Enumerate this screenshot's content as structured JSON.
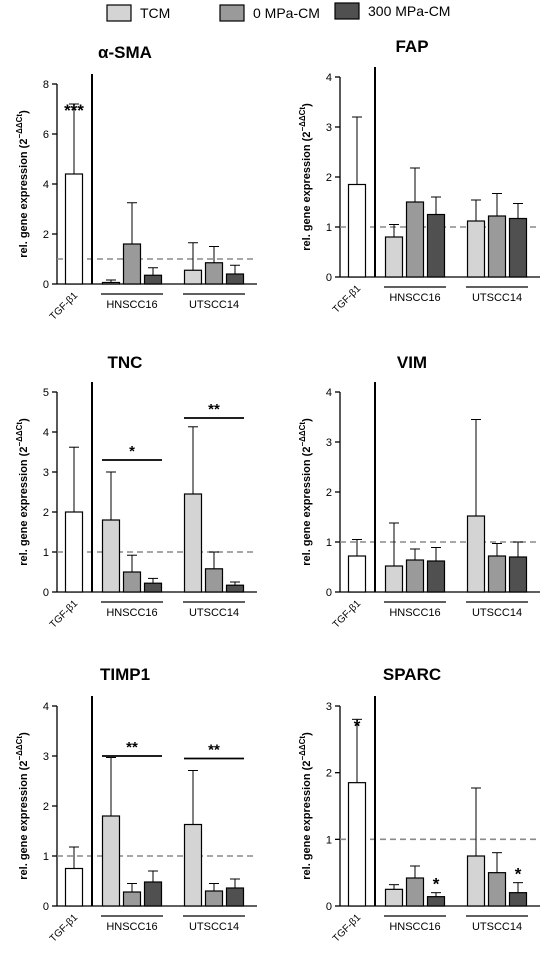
{
  "legend": {
    "items": [
      {
        "label": "TCM",
        "color": "#d4d4d4"
      },
      {
        "label": "0 MPa-CM",
        "color": "#9a9a9a"
      },
      {
        "label": "300 MPa-CM",
        "color": "#505050"
      }
    ]
  },
  "colors": {
    "tgf": "#ffffff",
    "tcm": "#d4d4d4",
    "mpa0": "#9a9a9a",
    "mpa300": "#505050",
    "baseline": "#8a8a8a"
  },
  "chart_data": [
    {
      "type": "bar",
      "title": "α-SMA",
      "ylabel_main": "rel. gene expression (2",
      "ylabel_sup": "−ΔΔCt",
      "ylabel_close": ")",
      "ylim": [
        0,
        8
      ],
      "yticks": [
        "0",
        "2",
        "4",
        "6",
        "8"
      ],
      "yticks_values": [
        0,
        2,
        4,
        6,
        8
      ],
      "baseline": 1,
      "tgf": {
        "label": "TGF-β1",
        "value": 4.4,
        "error": 2.8,
        "sig": "***"
      },
      "groups": [
        {
          "label": "HNSCC16",
          "values": [
            0.06,
            1.6,
            0.35
          ],
          "errors": [
            0.1,
            1.65,
            0.3
          ],
          "sig": [
            "",
            "",
            ""
          ]
        },
        {
          "label": "UTSCC14",
          "values": [
            0.55,
            0.85,
            0.4
          ],
          "errors": [
            1.1,
            0.65,
            0.35
          ],
          "sig": [
            "",
            "",
            ""
          ]
        }
      ],
      "brackets": []
    },
    {
      "type": "bar",
      "title": "FAP",
      "ylabel_main": "rel. gene expression (2",
      "ylabel_sup": "−ΔΔCt",
      "ylabel_close": ")",
      "ylim": [
        0,
        4
      ],
      "yticks": [
        "0",
        "1",
        "2",
        "3",
        "4"
      ],
      "yticks_values": [
        0,
        1,
        2,
        3,
        4
      ],
      "baseline": 1,
      "tgf": {
        "label": "TGF-β1",
        "value": 1.85,
        "error": 1.35,
        "sig": ""
      },
      "groups": [
        {
          "label": "HNSCC16",
          "values": [
            0.8,
            1.5,
            1.25
          ],
          "errors": [
            0.25,
            0.68,
            0.35
          ],
          "sig": [
            "",
            "",
            ""
          ]
        },
        {
          "label": "UTSCC14",
          "values": [
            1.12,
            1.22,
            1.17
          ],
          "errors": [
            0.42,
            0.45,
            0.3
          ],
          "sig": [
            "",
            "",
            ""
          ]
        }
      ],
      "brackets": []
    },
    {
      "type": "bar",
      "title": "TNC",
      "ylabel_main": "rel. gene expression (2",
      "ylabel_sup": "−ΔΔCt",
      "ylabel_close": ")",
      "ylim": [
        0,
        5
      ],
      "yticks": [
        "0",
        "1",
        "2",
        "3",
        "4",
        "5"
      ],
      "yticks_values": [
        0,
        1,
        2,
        3,
        4,
        5
      ],
      "baseline": 1,
      "tgf": {
        "label": "TGF-β1",
        "value": 2.0,
        "error": 1.62,
        "sig": ""
      },
      "groups": [
        {
          "label": "HNSCC16",
          "values": [
            1.8,
            0.5,
            0.22
          ],
          "errors": [
            1.2,
            0.42,
            0.12
          ],
          "sig": [
            "",
            "",
            ""
          ]
        },
        {
          "label": "UTSCC14",
          "values": [
            2.45,
            0.58,
            0.17
          ],
          "errors": [
            1.68,
            0.42,
            0.08
          ],
          "sig": [
            "",
            "",
            ""
          ]
        }
      ],
      "brackets": [
        {
          "group": 0,
          "from": 0,
          "to": 2,
          "y": 3.3,
          "text": "*"
        },
        {
          "group": 1,
          "from": 0,
          "to": 2,
          "y": 4.35,
          "text": "**"
        }
      ]
    },
    {
      "type": "bar",
      "title": "VIM",
      "ylabel_main": "rel. gene expression (2",
      "ylabel_sup": "−ΔΔCt",
      "ylabel_close": ")",
      "ylim": [
        0,
        4
      ],
      "yticks": [
        "0",
        "1",
        "2",
        "3",
        "4"
      ],
      "yticks_values": [
        0,
        1,
        2,
        3,
        4
      ],
      "baseline": 1,
      "tgf": {
        "label": "TGF-β1",
        "value": 0.72,
        "error": 0.33,
        "sig": ""
      },
      "groups": [
        {
          "label": "HNSCC16",
          "values": [
            0.52,
            0.64,
            0.62
          ],
          "errors": [
            0.86,
            0.22,
            0.27
          ],
          "sig": [
            "",
            "",
            ""
          ]
        },
        {
          "label": "UTSCC14",
          "values": [
            1.52,
            0.72,
            0.7
          ],
          "errors": [
            1.93,
            0.25,
            0.3
          ],
          "sig": [
            "",
            "",
            ""
          ]
        }
      ],
      "brackets": []
    },
    {
      "type": "bar",
      "title": "TIMP1",
      "ylabel_main": "rel. gene expression (2",
      "ylabel_sup": "−ΔΔCt",
      "ylabel_close": ")",
      "ylim": [
        0,
        4
      ],
      "yticks": [
        "0",
        "1",
        "2",
        "3",
        "4"
      ],
      "yticks_values": [
        0,
        1,
        2,
        3,
        4
      ],
      "baseline": 1,
      "tgf": {
        "label": "TGF-β1",
        "value": 0.75,
        "error": 0.43,
        "sig": ""
      },
      "groups": [
        {
          "label": "HNSCC16",
          "values": [
            1.8,
            0.28,
            0.48
          ],
          "errors": [
            1.17,
            0.17,
            0.22
          ],
          "sig": [
            "",
            "",
            ""
          ]
        },
        {
          "label": "UTSCC14",
          "values": [
            1.63,
            0.3,
            0.36
          ],
          "errors": [
            1.08,
            0.15,
            0.18
          ],
          "sig": [
            "",
            "",
            ""
          ]
        }
      ],
      "brackets": [
        {
          "group": 0,
          "from": 0,
          "to": 2,
          "y": 3.0,
          "text": "**"
        },
        {
          "group": 1,
          "from": 0,
          "to": 2,
          "y": 2.95,
          "text": "**"
        }
      ]
    },
    {
      "type": "bar",
      "title": "SPARC",
      "ylabel_main": "rel. gene expression (2",
      "ylabel_sup": "−ΔΔCt",
      "ylabel_close": ")",
      "ylim": [
        0,
        3
      ],
      "yticks": [
        "0",
        "1",
        "2",
        "3"
      ],
      "yticks_values": [
        0,
        1,
        2,
        3
      ],
      "baseline": 1,
      "tgf": {
        "label": "TGF-β1",
        "value": 1.85,
        "error": 0.95,
        "sig": "*"
      },
      "groups": [
        {
          "label": "HNSCC16",
          "values": [
            0.25,
            0.42,
            0.14
          ],
          "errors": [
            0.07,
            0.18,
            0.06
          ],
          "sig": [
            "",
            "",
            "*"
          ]
        },
        {
          "label": "UTSCC14",
          "values": [
            0.75,
            0.5,
            0.2
          ],
          "errors": [
            1.02,
            0.3,
            0.15
          ],
          "sig": [
            "",
            "",
            "*"
          ]
        }
      ],
      "brackets": []
    }
  ]
}
